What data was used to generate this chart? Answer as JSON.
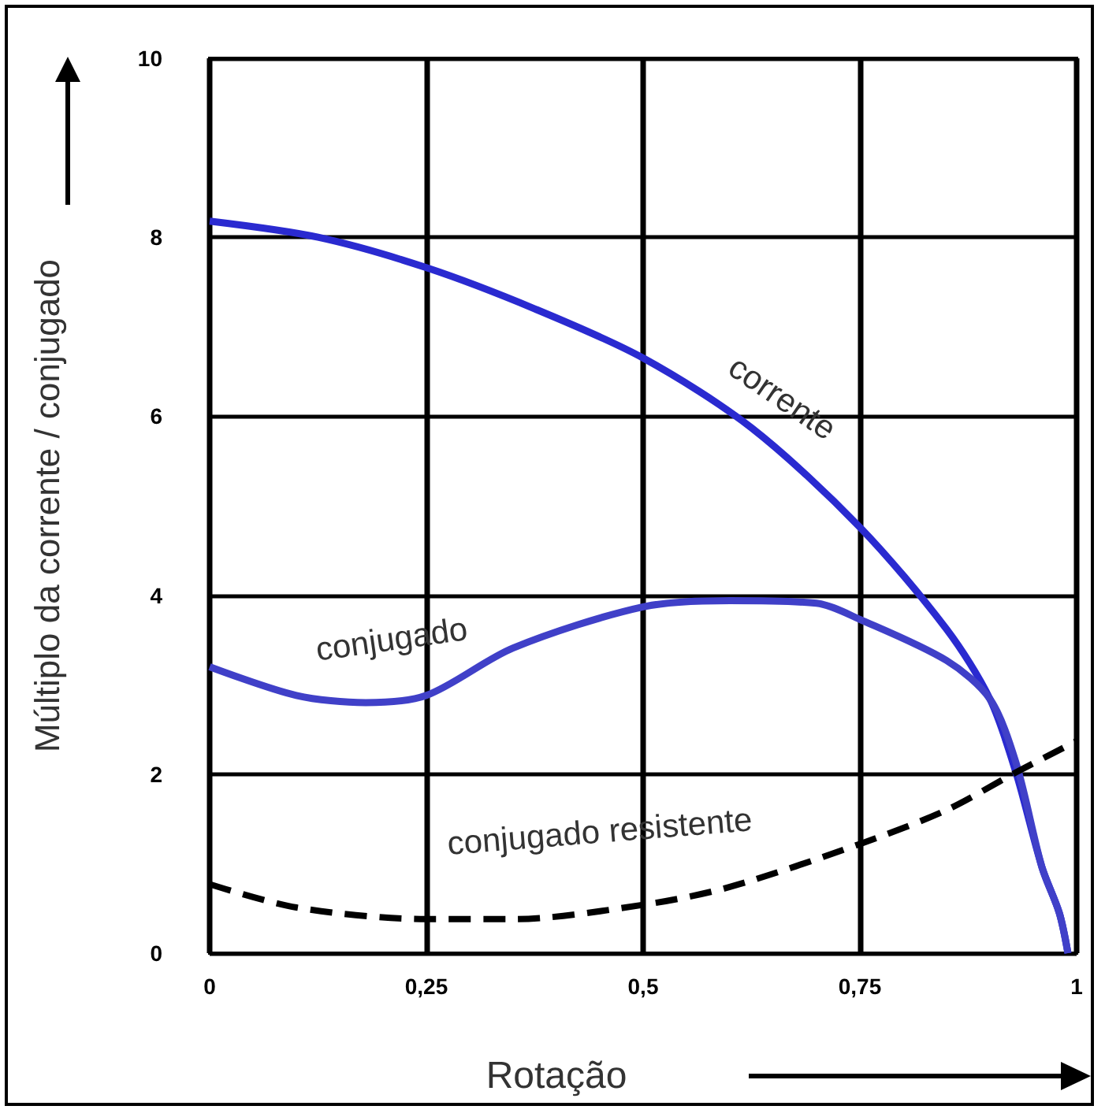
{
  "chart_data": {
    "type": "line",
    "xlabel": "Rotação",
    "ylabel": "Múltiplo da corrente / conjugado",
    "xlim": [
      0,
      1
    ],
    "xticks": [
      0,
      {
        "value": 0.25,
        "label": "0,25"
      },
      {
        "value": 0.5,
        "label": "0,5"
      },
      {
        "value": 0.75,
        "label": "0,75"
      },
      1
    ],
    "ylim": [
      0,
      10
    ],
    "yticks": [
      0,
      2,
      4,
      6,
      8,
      10
    ],
    "grid": true,
    "marker": "none",
    "series": [
      {
        "name": "corrente",
        "color": "#2a2ad0",
        "line_style": "solid",
        "x": [
          0,
          0.125,
          0.25,
          0.375,
          0.5,
          0.625,
          0.75,
          0.85,
          0.9,
          0.93,
          0.96,
          0.98,
          0.99
        ],
        "values": [
          8.18,
          8.0,
          7.66,
          7.2,
          6.65,
          5.87,
          4.76,
          3.62,
          2.84,
          2.02,
          0.96,
          0.45,
          0
        ]
      },
      {
        "name": "conjugado",
        "color": "#4040c8",
        "line_style": "solid",
        "x": [
          0,
          0.1,
          0.18,
          0.25,
          0.35,
          0.5,
          0.6,
          0.7,
          0.75,
          0.85,
          0.9,
          0.93,
          0.96,
          0.98,
          0.99
        ],
        "values": [
          3.2,
          2.88,
          2.8,
          2.88,
          3.41,
          3.87,
          3.94,
          3.91,
          3.73,
          3.27,
          2.84,
          2.13,
          0.96,
          0.45,
          0
        ]
      },
      {
        "name": "conjugado resistente",
        "color": "#000000",
        "line_style": "dashed",
        "x": [
          0,
          0.1,
          0.25,
          0.35,
          0.5,
          0.6,
          0.75,
          0.85,
          0.93,
          1
        ],
        "values": [
          0.77,
          0.51,
          0.38,
          0.38,
          0.54,
          0.74,
          1.22,
          1.6,
          2.02,
          2.37
        ]
      }
    ]
  }
}
